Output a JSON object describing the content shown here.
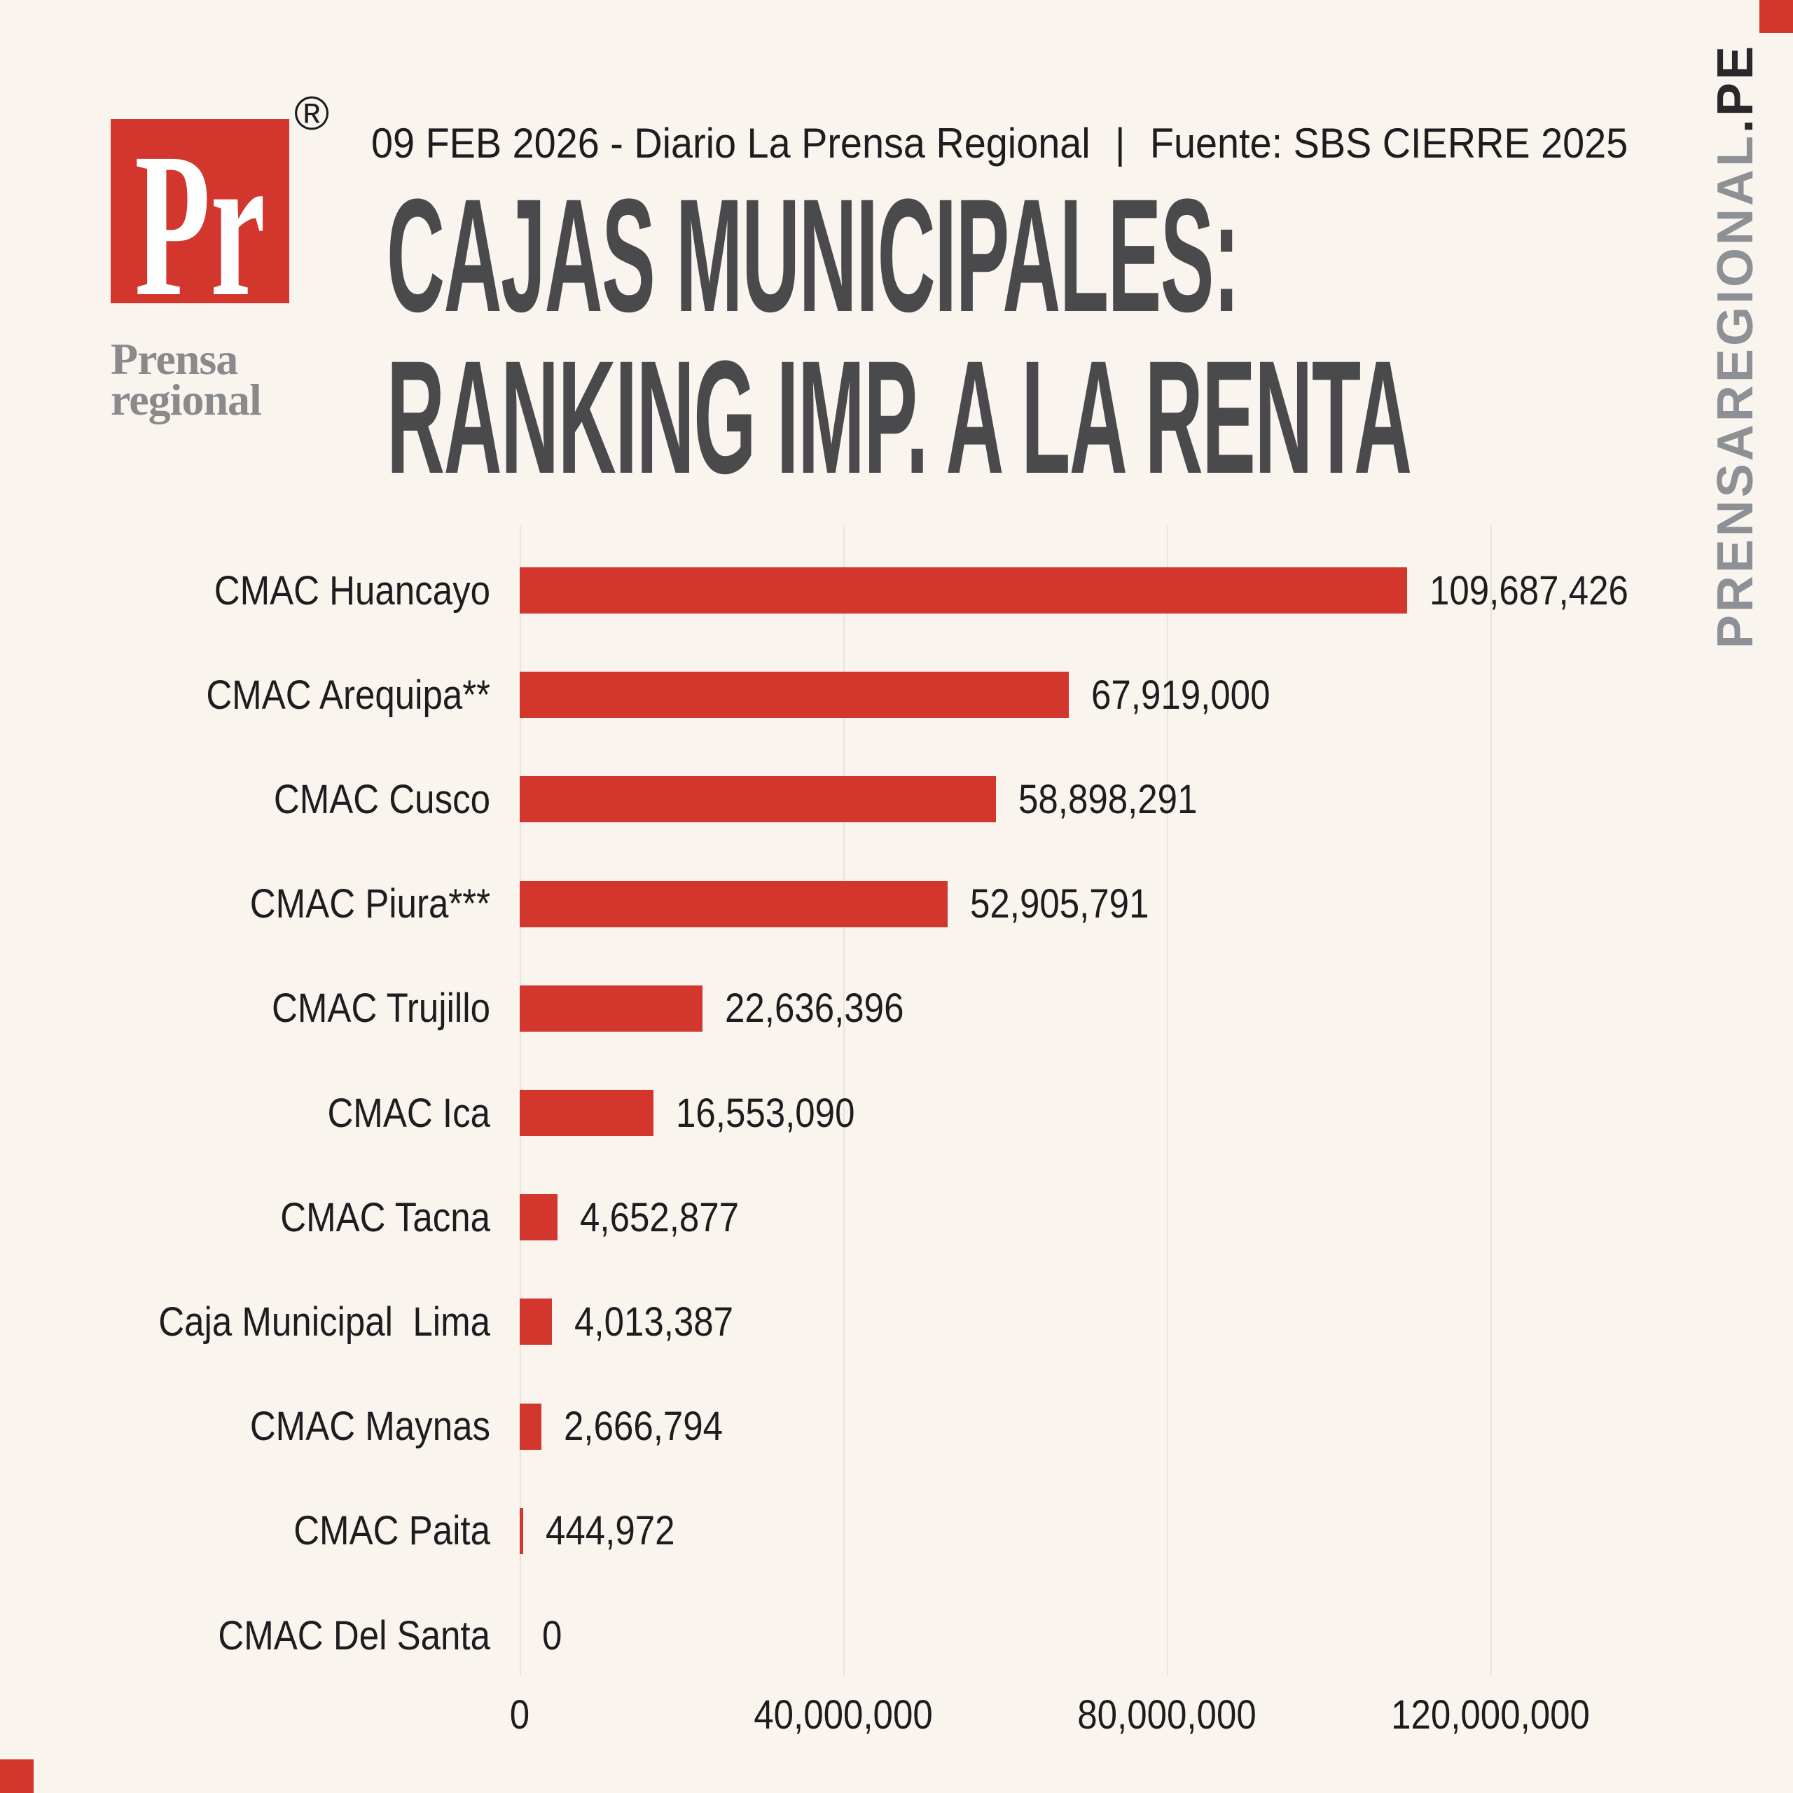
{
  "page": {
    "background_color": "#FAF4EF",
    "accent_red": "#D2362C"
  },
  "brand": {
    "monogram": "Pr",
    "registered": "®",
    "wordmark_line1": "Prensa",
    "wordmark_line2": "regional",
    "site_gray": "PRENSAREGIONAL",
    "site_dark": ".PE"
  },
  "header": {
    "dateline": "09 FEB 2026 - Diario La Prensa Regional",
    "separator": "|",
    "source": "Fuente: SBS CIERRE 2025",
    "title_line1": "CAJAS MUNICIPALES:",
    "title_line2": "RANKING IMP. A LA RENTA"
  },
  "chart_data": {
    "type": "bar",
    "orientation": "horizontal",
    "title": "CAJAS MUNICIPALES: RANKING IMP. A LA RENTA",
    "categories": [
      "CMAC Huancayo",
      "CMAC Arequipa**",
      "CMAC Cusco",
      "CMAC Piura***",
      "CMAC Trujillo",
      "CMAC Ica",
      "CMAC Tacna",
      "Caja Municipal  Lima",
      "CMAC Maynas",
      "CMAC Paita",
      "CMAC Del Santa"
    ],
    "values": [
      109687426,
      67919000,
      58898291,
      52905791,
      22636396,
      16553090,
      4652877,
      4013387,
      2666794,
      444972,
      0
    ],
    "value_labels": [
      "109,687,426",
      "67,919,000",
      "58,898,291",
      "52,905,791",
      "22,636,396",
      "16,553,090",
      "4,652,877",
      "4,013,387",
      "2,666,794",
      "444,972",
      "0"
    ],
    "xlim": [
      0,
      120000000
    ],
    "x_ticks": [
      {
        "value": 0,
        "label": "0"
      },
      {
        "value": 40000000,
        "label": "40,000,000"
      },
      {
        "value": 80000000,
        "label": "80,000,000"
      },
      {
        "value": 120000000,
        "label": "120,000,000"
      }
    ],
    "bar_color": "#D2362C",
    "grid": true,
    "legend": false
  }
}
